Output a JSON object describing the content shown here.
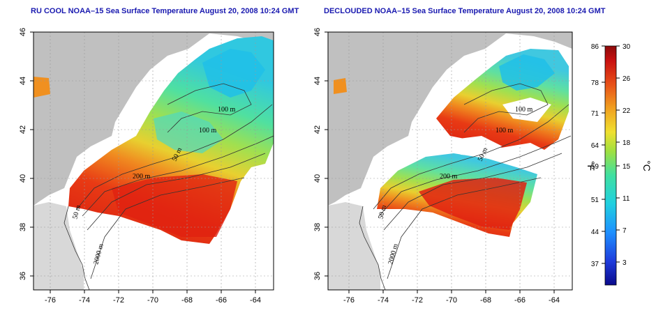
{
  "panels": [
    {
      "title": "RU COOL NOAA–15 Sea Surface Temperature August 20, 2008 10:24 GMT",
      "contour_labels": [
        "100 m",
        "100 m",
        "50 m",
        "200 m",
        "50 m",
        "2000 m"
      ]
    },
    {
      "title": "DECLOUDED NOAA–15 Sea Surface Temperature August 20, 2008 10:24 GMT",
      "contour_labels": [
        "100 m",
        "100 m",
        "50 m",
        "200 m",
        "50 m",
        "2000 m"
      ]
    }
  ],
  "x_ticks": [
    "-76",
    "-74",
    "-72",
    "-70",
    "-68",
    "-66",
    "-64"
  ],
  "y_ticks": [
    "46",
    "44",
    "42",
    "40",
    "38",
    "36"
  ],
  "colorbar": {
    "fahrenheit_ticks": [
      "86",
      "78",
      "71",
      "64",
      "59",
      "51",
      "44",
      "37"
    ],
    "celsius_ticks": [
      "30",
      "26",
      "22",
      "18",
      "15",
      "11",
      "7",
      "3"
    ],
    "fahrenheit_unit": "°F",
    "celsius_unit": "°C",
    "range_c": [
      0,
      30
    ],
    "colors": [
      "#0a0a8c",
      "#1e3cdc",
      "#1e90ff",
      "#20d0e0",
      "#40e0a0",
      "#a0e040",
      "#f0e030",
      "#f0a020",
      "#e85018",
      "#c81010",
      "#8c0a0a"
    ]
  },
  "colors": {
    "land": "#c0c0c0",
    "shelf_land": "#d8d8d8",
    "title": "#1a1ab0"
  }
}
